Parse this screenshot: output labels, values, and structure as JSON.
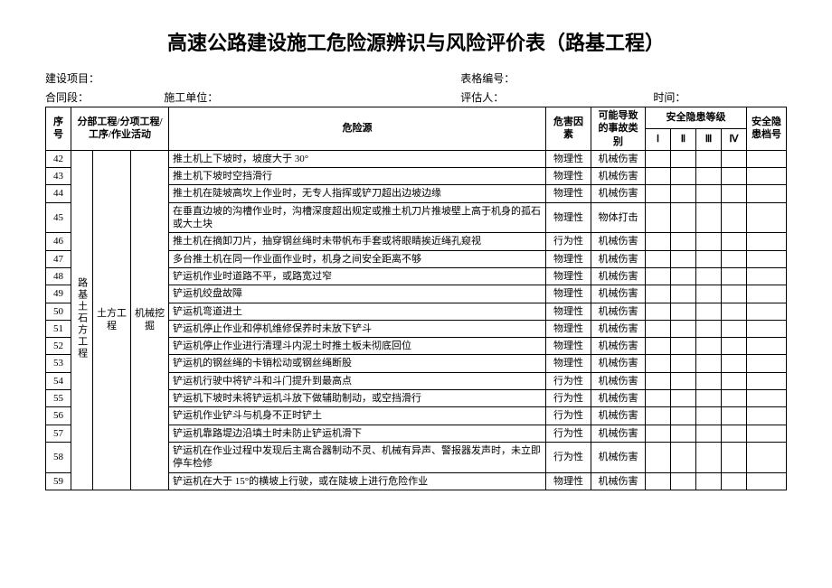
{
  "title": "高速公路建设施工危险源辨识与风险评价表（路基工程）",
  "meta": {
    "project_label": "建设项目：",
    "contract_label": "合同段：",
    "unit_label": "施工单位：",
    "form_no_label": "表格编号：",
    "assessor_label": "评估人：",
    "time_label": "时间："
  },
  "headers": {
    "seq": "序号",
    "section": "分部工程/分项工程/工序/作业活动",
    "hazard": "危险源",
    "factor": "危害因素",
    "accident": "可能导致的事故类别",
    "level_group": "安全隐患等级",
    "levels": [
      "Ⅰ",
      "Ⅱ",
      "Ⅲ",
      "Ⅳ"
    ],
    "hidden_no": "安全隐患档号"
  },
  "category": {
    "col1": "路基土石方工程",
    "col2": "土方工程",
    "col3": "机械挖掘"
  },
  "rows": [
    {
      "n": "42",
      "h": "推土机上下坡时，坡度大于 30°",
      "f": "物理性",
      "a": "机械伤害"
    },
    {
      "n": "43",
      "h": "推土机下坡时空挡滑行",
      "f": "物理性",
      "a": "机械伤害"
    },
    {
      "n": "44",
      "h": "推土机在陡坡高坎上作业时，无专人指挥或铲刀超出边坡边缘",
      "f": "物理性",
      "a": "机械伤害"
    },
    {
      "n": "45",
      "h": "在垂直边坡的沟槽作业时，沟槽深度超出规定或推土机刀片推坡壁上高于机身的孤石或大土块",
      "f": "物理性",
      "a": "物体打击"
    },
    {
      "n": "46",
      "h": "推土机在摘卸刀片，抽穿钢丝绳时未带帆布手套或将眼睛挨近绳孔窥视",
      "f": "行为性",
      "a": "机械伤害"
    },
    {
      "n": "47",
      "h": "多台推土机在同一作业面作业时，机身之间安全距离不够",
      "f": "物理性",
      "a": "机械伤害"
    },
    {
      "n": "48",
      "h": "铲运机作业时道路不平，或路宽过窄",
      "f": "物理性",
      "a": "机械伤害"
    },
    {
      "n": "49",
      "h": "铲运机绞盘故障",
      "f": "物理性",
      "a": "机械伤害"
    },
    {
      "n": "50",
      "h": "铲运机弯道进土",
      "f": "物理性",
      "a": "机械伤害"
    },
    {
      "n": "51",
      "h": "铲运机停止作业和停机维修保养时未放下铲斗",
      "f": "物理性",
      "a": "机械伤害"
    },
    {
      "n": "52",
      "h": "铲运机停止作业进行清理斗内泥土时推土板未彻底回位",
      "f": "物理性",
      "a": "机械伤害"
    },
    {
      "n": "53",
      "h": "铲运机的钢丝绳的卡销松动或钢丝绳断股",
      "f": "物理性",
      "a": "机械伤害"
    },
    {
      "n": "54",
      "h": "铲运机行驶中将铲斗和斗门提升到最高点",
      "f": "行为性",
      "a": "机械伤害"
    },
    {
      "n": "55",
      "h": "铲运机下坡时未将铲运机斗放下做辅助制动，或空挡滑行",
      "f": "行为性",
      "a": "机械伤害"
    },
    {
      "n": "56",
      "h": "铲运机作业铲斗与机身不正时铲土",
      "f": "行为性",
      "a": "机械伤害"
    },
    {
      "n": "57",
      "h": "铲运机靠路堤边沿填土时未防止铲运机滑下",
      "f": "行为性",
      "a": "机械伤害"
    },
    {
      "n": "58",
      "h": "铲运机在作业过程中发现后主离合器制动不灵、机械有异声、警报器发声时，未立即停车检修",
      "f": "行为性",
      "a": "机械伤害"
    },
    {
      "n": "59",
      "h": "铲运机在大于 15°的横坡上行驶，或在陡坡上进行危险作业",
      "f": "物理性",
      "a": "机械伤害"
    }
  ]
}
